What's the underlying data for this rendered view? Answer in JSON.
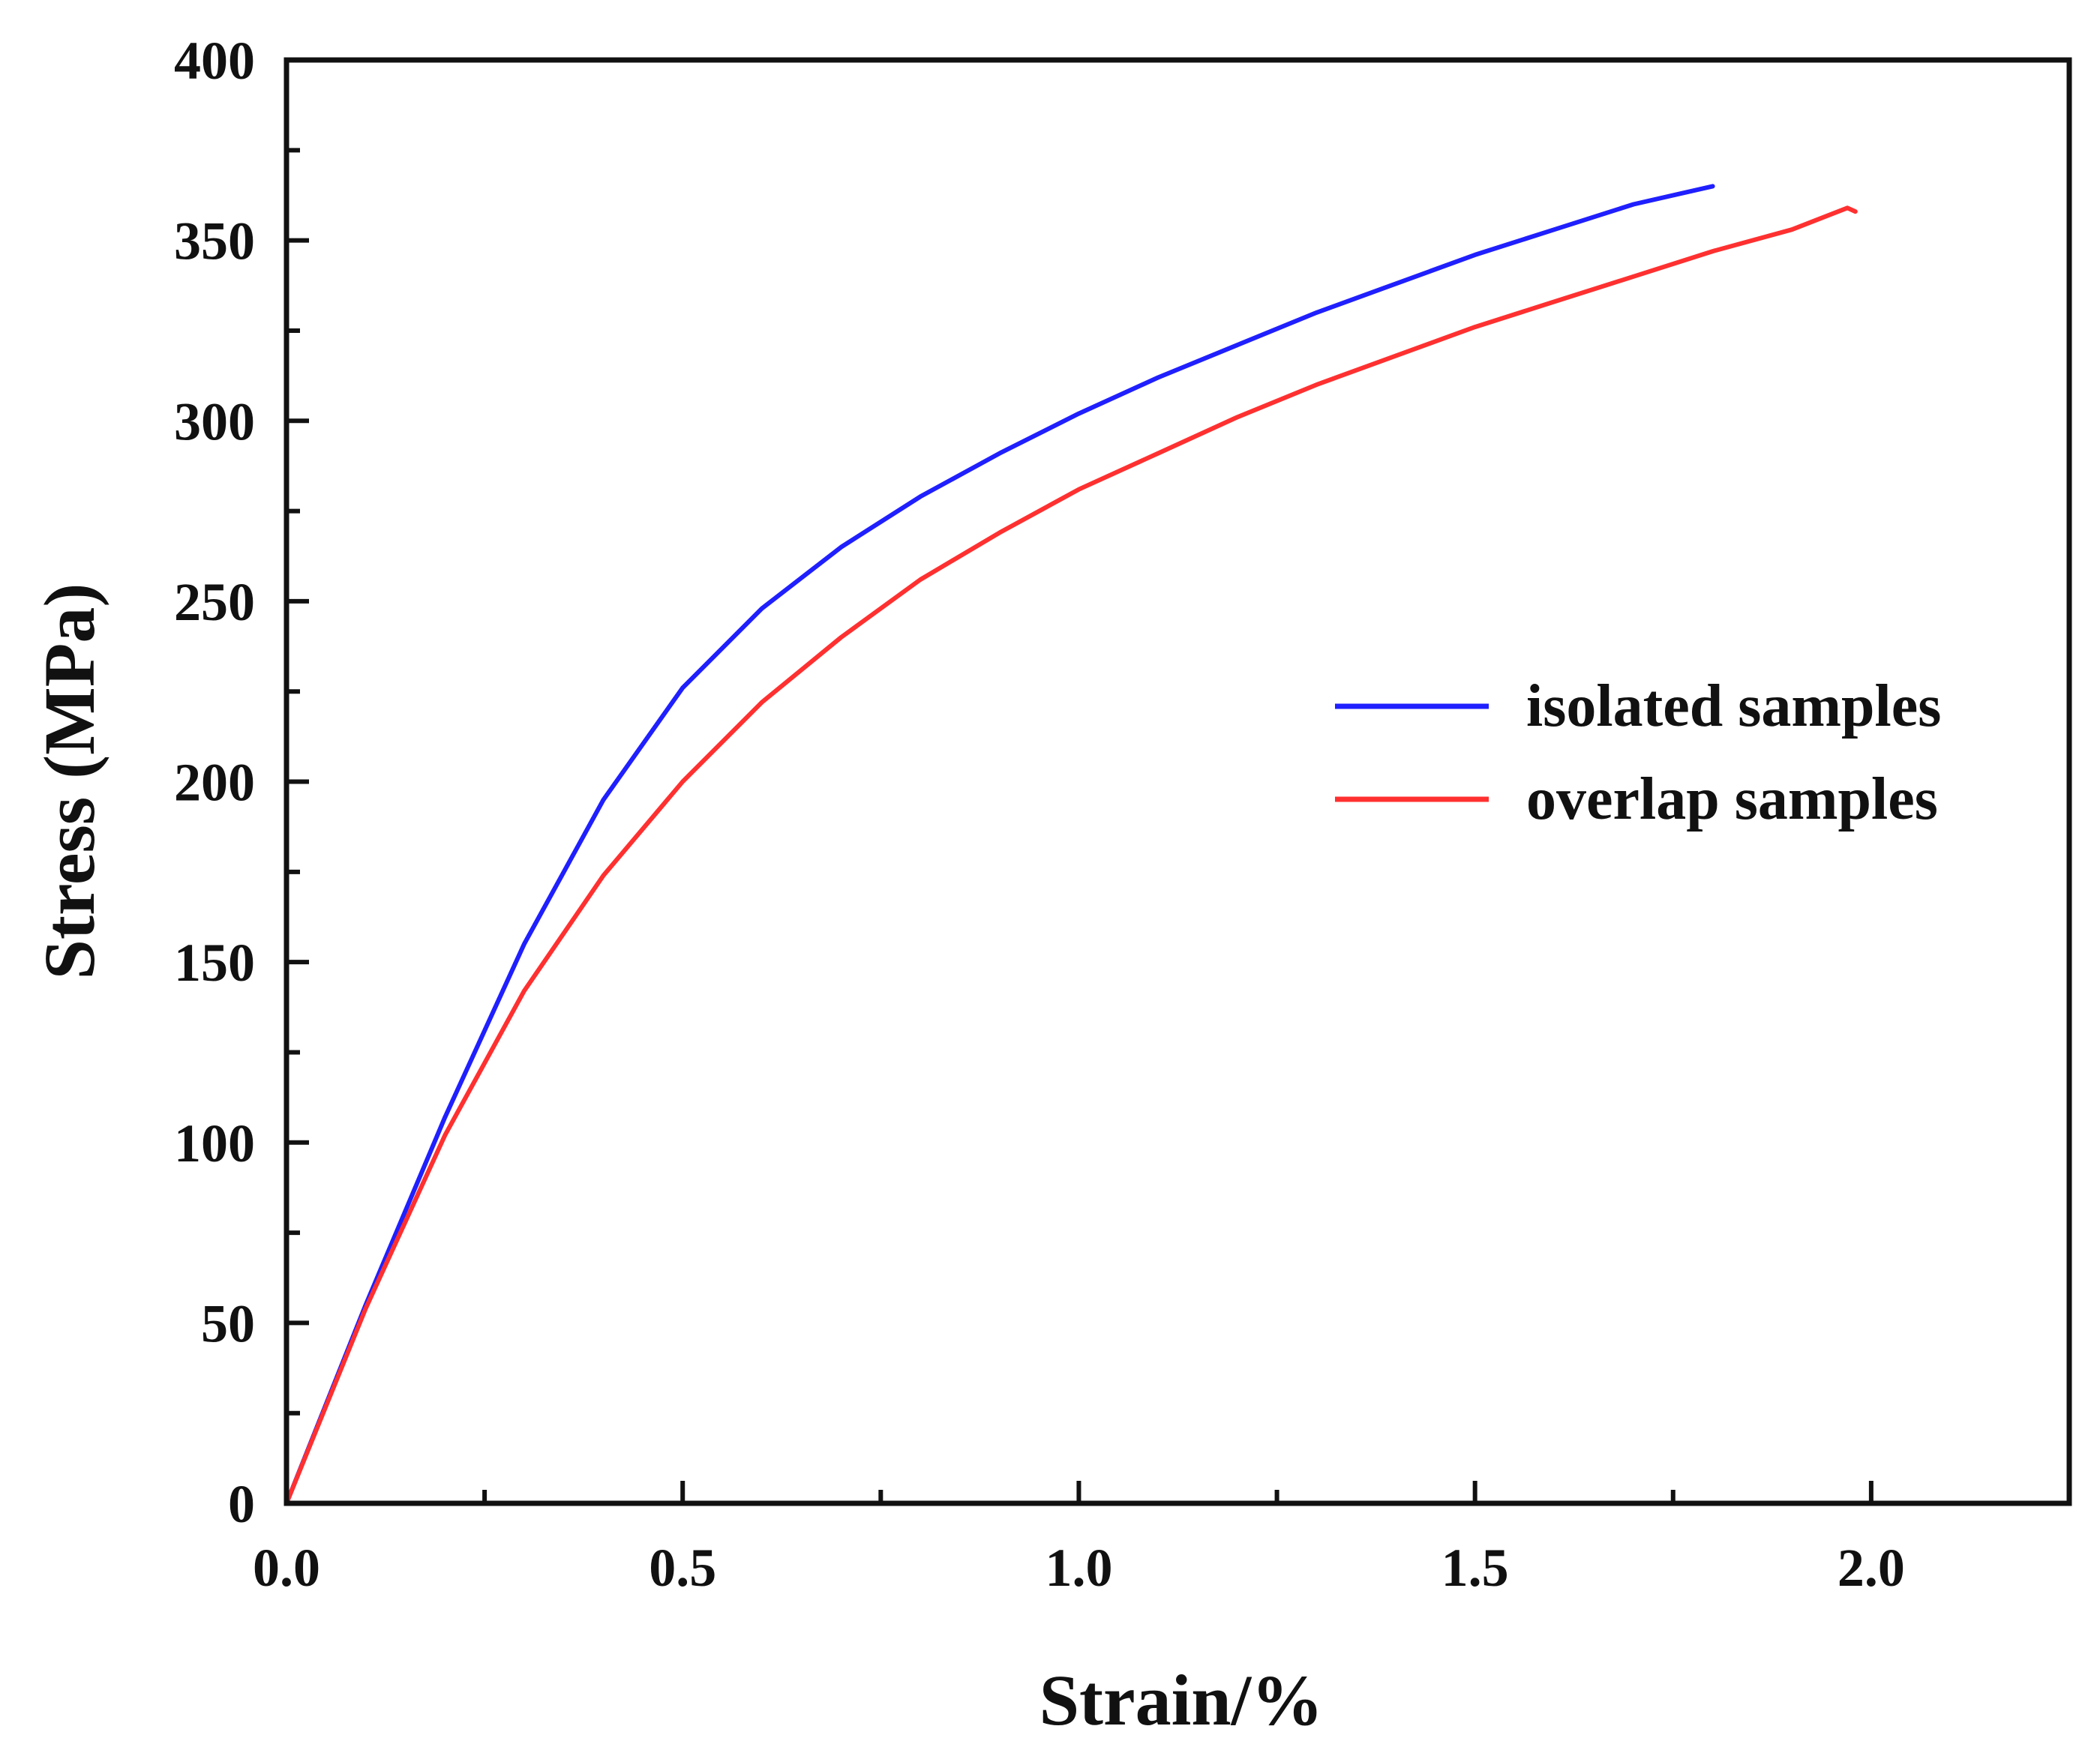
{
  "chart_data": {
    "type": "line",
    "title": "",
    "xlabel": "Strain/%",
    "ylabel": "Stress (MPa)",
    "xlim": [
      0,
      2.25
    ],
    "ylim": [
      0,
      400
    ],
    "xticks": [
      0.0,
      0.5,
      1.0,
      1.5,
      2.0
    ],
    "xtick_labels": [
      "0.0",
      "0.5",
      "1.0",
      "1.5",
      "2.0"
    ],
    "yticks": [
      0,
      50,
      100,
      150,
      200,
      250,
      300,
      350,
      400
    ],
    "ytick_labels": [
      "0",
      "50",
      "100",
      "150",
      "200",
      "250",
      "300",
      "350",
      "400"
    ],
    "grid": false,
    "legend_position": "right-middle",
    "series": [
      {
        "name": "isolated samples",
        "color": "#1f1fff",
        "x": [
          0,
          0.1,
          0.2,
          0.3,
          0.4,
          0.5,
          0.6,
          0.7,
          0.8,
          0.9,
          1.0,
          1.1,
          1.2,
          1.3,
          1.4,
          1.5,
          1.6,
          1.7,
          1.8
        ],
        "y": [
          0,
          55,
          107,
          155,
          195,
          226,
          248,
          265,
          279,
          291,
          302,
          312,
          321,
          330,
          338,
          346,
          353,
          360,
          365
        ]
      },
      {
        "name": "overlap samples",
        "color": "#ff3030",
        "x": [
          0,
          0.1,
          0.2,
          0.3,
          0.4,
          0.5,
          0.6,
          0.7,
          0.8,
          0.9,
          1.0,
          1.1,
          1.2,
          1.3,
          1.4,
          1.5,
          1.6,
          1.7,
          1.8,
          1.9,
          1.97,
          1.98
        ],
        "y": [
          0,
          54,
          102,
          142,
          174,
          200,
          222,
          240,
          256,
          269,
          281,
          291,
          301,
          310,
          318,
          326,
          333,
          340,
          347,
          353,
          359,
          358
        ]
      }
    ]
  }
}
